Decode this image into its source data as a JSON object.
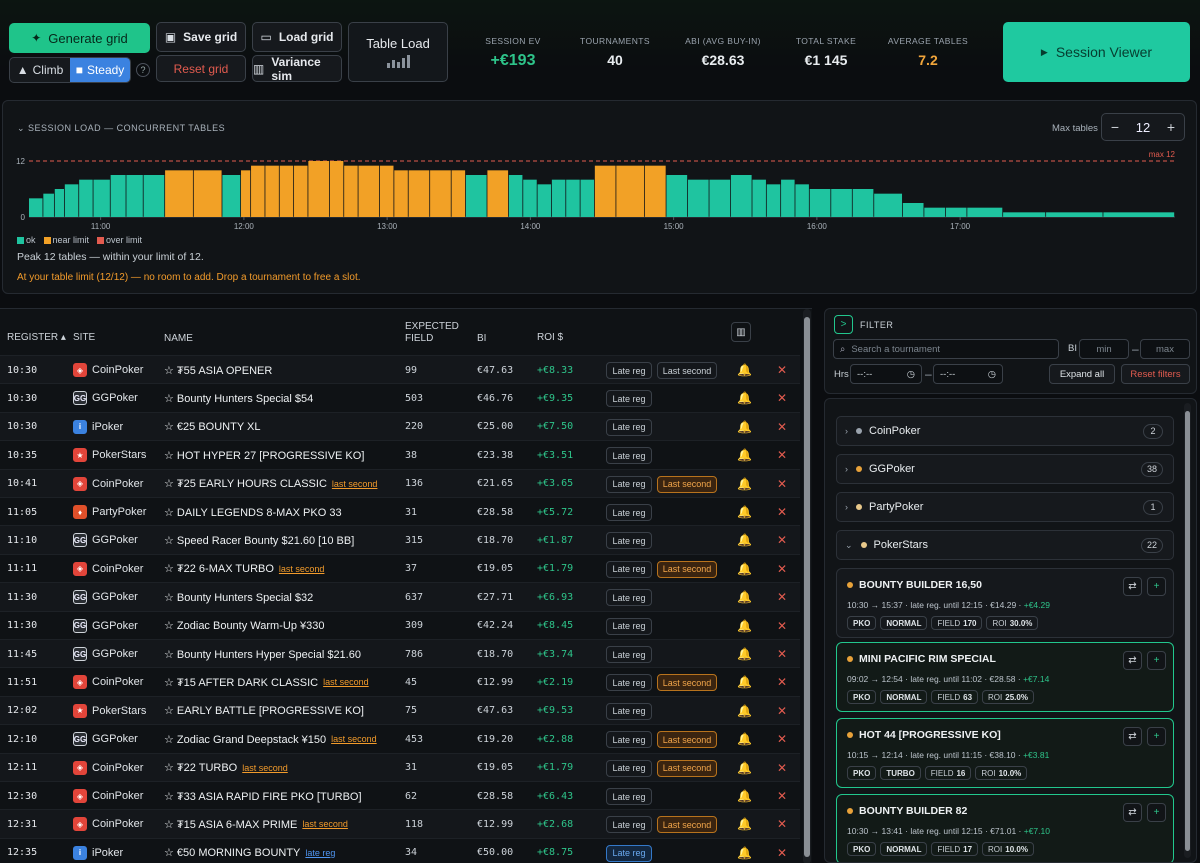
{
  "toolbar": {
    "generate": "Generate grid",
    "climb": "Climb",
    "steady": "Steady",
    "help": "?",
    "save": "Save grid",
    "reset": "Reset grid",
    "load": "Load grid",
    "variance": "Variance sim",
    "table_load": "Table Load",
    "session_viewer": "Session Viewer"
  },
  "stats": [
    {
      "label": "SESSION EV",
      "value": "+€193",
      "color": "#2ec48a"
    },
    {
      "label": "TOURNAMENTS",
      "value": "40",
      "color": "#e8ecef"
    },
    {
      "label": "ABI (AVG BUY-IN)",
      "value": "€28.63",
      "color": "#e8ecef"
    },
    {
      "label": "TOTAL STAKE",
      "value": "€1 145",
      "color": "#e8ecef"
    },
    {
      "label": "AVERAGE TABLES",
      "value": "7.2",
      "color": "#f2a63b"
    }
  ],
  "load_panel": {
    "title": "SESSION LOAD — CONCURRENT TABLES",
    "max_tables_label": "Max tables",
    "max_tables_value": "12",
    "minus": "−",
    "plus": "+",
    "legend": [
      "ok",
      "near limit",
      "over limit"
    ],
    "legend_colors": [
      "#1fc4a0",
      "#f2a126",
      "#e25b4f"
    ],
    "peak_text": "Peak 12 tables — within your limit of 12.",
    "warning_text": "At your table limit (12/12) — no room to add. Drop a tournament to free a slot."
  },
  "chart_data": {
    "type": "bar",
    "ylim": [
      0,
      12
    ],
    "y_ticks": [
      "12",
      "0"
    ],
    "max_label": "max 12",
    "x_ticks": [
      "11:00",
      "12:00",
      "13:00",
      "14:00",
      "15:00",
      "16:00",
      "17:00"
    ],
    "x_range": [
      "10:30",
      "18:30"
    ],
    "x_start_hours": 10.5,
    "x_end_hours": 18.5,
    "limit": 12,
    "steps": [
      [
        10.5,
        4
      ],
      [
        10.6,
        5
      ],
      [
        10.68,
        6
      ],
      [
        10.75,
        7
      ],
      [
        10.85,
        8
      ],
      [
        10.95,
        8
      ],
      [
        11.07,
        9
      ],
      [
        11.18,
        9
      ],
      [
        11.3,
        9
      ],
      [
        11.45,
        10
      ],
      [
        11.65,
        10
      ],
      [
        11.85,
        9
      ],
      [
        11.98,
        10
      ],
      [
        12.05,
        11
      ],
      [
        12.15,
        11
      ],
      [
        12.25,
        11
      ],
      [
        12.35,
        11
      ],
      [
        12.45,
        12
      ],
      [
        12.6,
        12
      ],
      [
        12.7,
        11
      ],
      [
        12.8,
        11
      ],
      [
        12.95,
        11
      ],
      [
        13.05,
        10
      ],
      [
        13.15,
        10
      ],
      [
        13.3,
        10
      ],
      [
        13.45,
        10
      ],
      [
        13.55,
        9
      ],
      [
        13.7,
        10
      ],
      [
        13.85,
        9
      ],
      [
        13.95,
        8
      ],
      [
        14.05,
        7
      ],
      [
        14.15,
        8
      ],
      [
        14.25,
        8
      ],
      [
        14.35,
        8
      ],
      [
        14.45,
        11
      ],
      [
        14.6,
        11
      ],
      [
        14.8,
        11
      ],
      [
        14.95,
        9
      ],
      [
        15.1,
        8
      ],
      [
        15.25,
        8
      ],
      [
        15.4,
        9
      ],
      [
        15.55,
        8
      ],
      [
        15.65,
        7
      ],
      [
        15.75,
        8
      ],
      [
        15.85,
        7
      ],
      [
        15.95,
        6
      ],
      [
        16.1,
        6
      ],
      [
        16.25,
        6
      ],
      [
        16.4,
        5
      ],
      [
        16.6,
        3
      ],
      [
        16.75,
        2
      ],
      [
        16.9,
        2
      ],
      [
        17.05,
        2
      ],
      [
        17.3,
        1
      ],
      [
        17.6,
        1
      ],
      [
        18.0,
        1
      ],
      [
        18.5,
        0
      ]
    ]
  },
  "table": {
    "headers": {
      "register": "REGISTER ▴",
      "site": "SITE",
      "name": "NAME",
      "field_1": "EXPECTED",
      "field_2": "FIELD",
      "bi": "BI",
      "roi": "ROI $",
      "cols_icon": "▥"
    },
    "late_label": "Late reg",
    "last_label": "Last second",
    "bell": "🔔",
    "del": "✕",
    "rows": [
      {
        "time": "10:30",
        "site": "CoinPoker",
        "name": "☆ ₮55 ASIA OPENER",
        "tag": "",
        "field": "99",
        "bi": "€47.63",
        "roi": "+€8.33",
        "late_hl": false,
        "last": true,
        "last_hl": false
      },
      {
        "time": "10:30",
        "site": "GGPoker",
        "name": "☆ Bounty Hunters Special $54",
        "tag": "",
        "field": "503",
        "bi": "€46.76",
        "roi": "+€9.35",
        "late_hl": false,
        "last": false,
        "last_hl": false
      },
      {
        "time": "10:30",
        "site": "iPoker",
        "name": "☆ €25 BOUNTY XL",
        "tag": "",
        "field": "220",
        "bi": "€25.00",
        "roi": "+€7.50",
        "late_hl": false,
        "last": false,
        "last_hl": false
      },
      {
        "time": "10:35",
        "site": "PokerStars",
        "name": "☆ HOT HYPER 27 [PROGRESSIVE KO]",
        "tag": "",
        "field": "38",
        "bi": "€23.38",
        "roi": "+€3.51",
        "late_hl": false,
        "last": false,
        "last_hl": false
      },
      {
        "time": "10:41",
        "site": "CoinPoker",
        "name": "☆ ₮25 EARLY HOURS CLASSIC",
        "tag": "last second",
        "field": "136",
        "bi": "€21.65",
        "roi": "+€3.65",
        "late_hl": false,
        "last": true,
        "last_hl": true
      },
      {
        "time": "11:05",
        "site": "PartyPoker",
        "name": "☆ DAILY LEGENDS 8-MAX PKO 33",
        "tag": "",
        "field": "31",
        "bi": "€28.58",
        "roi": "+€5.72",
        "late_hl": false,
        "last": false,
        "last_hl": false
      },
      {
        "time": "11:10",
        "site": "GGPoker",
        "name": "☆ Speed Racer Bounty $21.60 [10 BB]",
        "tag": "",
        "field": "315",
        "bi": "€18.70",
        "roi": "+€1.87",
        "late_hl": false,
        "last": false,
        "last_hl": false
      },
      {
        "time": "11:11",
        "site": "CoinPoker",
        "name": "☆ ₮22 6-MAX TURBO",
        "tag": "last second",
        "field": "37",
        "bi": "€19.05",
        "roi": "+€1.79",
        "late_hl": false,
        "last": true,
        "last_hl": true
      },
      {
        "time": "11:30",
        "site": "GGPoker",
        "name": "☆ Bounty Hunters Special $32",
        "tag": "",
        "field": "637",
        "bi": "€27.71",
        "roi": "+€6.93",
        "late_hl": false,
        "last": false,
        "last_hl": false
      },
      {
        "time": "11:30",
        "site": "GGPoker",
        "name": "☆ Zodiac Bounty Warm-Up ¥330",
        "tag": "",
        "field": "309",
        "bi": "€42.24",
        "roi": "+€8.45",
        "late_hl": false,
        "last": false,
        "last_hl": false
      },
      {
        "time": "11:45",
        "site": "GGPoker",
        "name": "☆ Bounty Hunters Hyper Special $21.60",
        "tag": "",
        "field": "786",
        "bi": "€18.70",
        "roi": "+€3.74",
        "late_hl": false,
        "last": false,
        "last_hl": false
      },
      {
        "time": "11:51",
        "site": "CoinPoker",
        "name": "☆ ₮15 AFTER DARK CLASSIC",
        "tag": "last second",
        "field": "45",
        "bi": "€12.99",
        "roi": "+€2.19",
        "late_hl": false,
        "last": true,
        "last_hl": true
      },
      {
        "time": "12:02",
        "site": "PokerStars",
        "name": "☆ EARLY BATTLE [PROGRESSIVE KO]",
        "tag": "",
        "field": "75",
        "bi": "€47.63",
        "roi": "+€9.53",
        "late_hl": false,
        "last": false,
        "last_hl": false
      },
      {
        "time": "12:10",
        "site": "GGPoker",
        "name": "☆ Zodiac Grand Deepstack ¥150",
        "tag": "last second",
        "field": "453",
        "bi": "€19.20",
        "roi": "+€2.88",
        "late_hl": false,
        "last": true,
        "last_hl": true
      },
      {
        "time": "12:11",
        "site": "CoinPoker",
        "name": "☆ ₮22 TURBO",
        "tag": "last second",
        "field": "31",
        "bi": "€19.05",
        "roi": "+€1.79",
        "late_hl": false,
        "last": true,
        "last_hl": true
      },
      {
        "time": "12:30",
        "site": "CoinPoker",
        "name": "☆ ₮33 ASIA RAPID FIRE PKO [TURBO]",
        "tag": "",
        "field": "62",
        "bi": "€28.58",
        "roi": "+€6.43",
        "late_hl": false,
        "last": false,
        "last_hl": false
      },
      {
        "time": "12:31",
        "site": "CoinPoker",
        "name": "☆ ₮15 ASIA 6-MAX PRIME",
        "tag": "last second",
        "field": "118",
        "bi": "€12.99",
        "roi": "+€2.68",
        "late_hl": false,
        "last": true,
        "last_hl": true
      },
      {
        "time": "12:35",
        "site": "iPoker",
        "name": "☆ €50 MORNING BOUNTY",
        "tag": "late reg",
        "field": "34",
        "bi": "€50.00",
        "roi": "+€8.75",
        "late_hl": true,
        "last": false,
        "last_hl": false
      }
    ]
  },
  "filter": {
    "toggle": ">",
    "title": "FILTER",
    "search_placeholder": "Search a tournament",
    "bi_label": "BI",
    "min_placeholder": "min",
    "dash": "–",
    "max_placeholder": "max",
    "hrs_label": "Hrs",
    "time_placeholder": "--:--",
    "clock": "◷",
    "expand": "Expand all",
    "reset": "Reset filters"
  },
  "groups": [
    {
      "name": "CoinPoker",
      "count": "2",
      "dot": "#9aa3ad",
      "chev": "›"
    },
    {
      "name": "GGPoker",
      "count": "38",
      "dot": "#e8a23a",
      "chev": "›"
    },
    {
      "name": "PartyPoker",
      "count": "1",
      "dot": "#e8c88a",
      "chev": "›"
    },
    {
      "name": "PokerStars",
      "count": "22",
      "dot": "#e8c88a",
      "chev": "⌄"
    }
  ],
  "cards": [
    {
      "title": "BOUNTY BUILDER 16,50",
      "meta": "10:30 → 15:37 · late reg. until 12:15 · €14.29 · ",
      "ev": "+€4.29",
      "chips": [
        "PKO",
        "NORMAL"
      ],
      "field": "170",
      "roi": "30.0%",
      "selected": false
    },
    {
      "title": "MINI PACIFIC RIM SPECIAL",
      "meta": "09:02 → 12:54 · late reg. until 11:02 · €28.58 · ",
      "ev": "+€7.14",
      "chips": [
        "PKO",
        "NORMAL"
      ],
      "field": "63",
      "roi": "25.0%",
      "selected": true
    },
    {
      "title": "HOT 44 [PROGRESSIVE KO]",
      "meta": "10:15 → 12:14 · late reg. until 11:15 · €38.10 · ",
      "ev": "+€3.81",
      "chips": [
        "PKO",
        "TURBO"
      ],
      "field": "16",
      "roi": "10.0%",
      "selected": true
    },
    {
      "title": "BOUNTY BUILDER 82",
      "meta": "10:30 → 13:41 · late reg. until 12:15 · €71.01 · ",
      "ev": "+€7.10",
      "chips": [
        "PKO",
        "NORMAL"
      ],
      "field": "17",
      "roi": "10.0%",
      "selected": true
    }
  ],
  "card_labels": {
    "field": "FIELD",
    "roi": "ROI",
    "swap": "⇄",
    "add": "+"
  }
}
